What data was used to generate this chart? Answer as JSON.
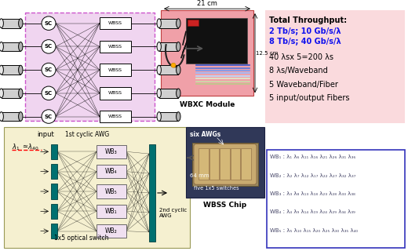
{
  "bg_color": "#ffffff",
  "pink_box_bg": "#f2b8b8",
  "pink_box_light": "#fadadd",
  "yellow_box_bg": "#f5f0d0",
  "blue_box_border": "#3333bb",
  "top_left_dashed_bg": "#f0d5f0",
  "teal_color": "#007070",
  "info_title": "Total Throughput:",
  "info_blue_line1": "2 Tb/s; 10 Gb/s/λ",
  "info_blue_line2": "8 Tb/s; 40 Gb/s/λ",
  "info_black1": "40 λsx 5=200 λs",
  "info_black2": "8 λs/Waveband",
  "info_black3": "5 Waveband/Fiber",
  "info_black4": "5 input/output Fibers",
  "wbxc_label": "WBXC Module",
  "wbss_chip_label": "WBSS Chip",
  "dim_top": "21 cm",
  "dim_side": "12.5 cm",
  "six_awgs": "six AWGs",
  "mm64": "64 mm",
  "five_switches": "five 1x5 switches",
  "input_label": "input",
  "first_cyclic": "1st cyclic AWG",
  "second_cyclic": "2nd cyclic\nAWG",
  "optical_switch": "1x5 optical switch",
  "wb_labels_bottom": [
    "WB₃",
    "WB₄",
    "WB₅",
    "WB₁",
    "WB₂"
  ],
  "wb_lines": [
    "WB₁ : λ₁ λ₆ λ₁₁ λ₁₆ λ₂₁ λ₂₆ λ₃₁ λ₃₆",
    "WB₂ : λ₂ λ₇ λ₁₂ λ₁₇ λ₂₂ λ₂₇ λ₃₂ λ₃₇",
    "WB₃ : λ₃ λ₈ λ₁₃ λ₁₈ λ₂₃ λ₂₈ λ₃₃ λ₃₈",
    "WB₄ : λ₄ λ₉ λ₁₄ λ₁₉ λ₂₄ λ₂₉ λ₃₄ λ₃₉",
    "WB₅ : λ₅ λ₁₀ λ₁₅ λ₂₀ λ₂₅ λ₃₀ λ₃₅ λ₄₀"
  ]
}
